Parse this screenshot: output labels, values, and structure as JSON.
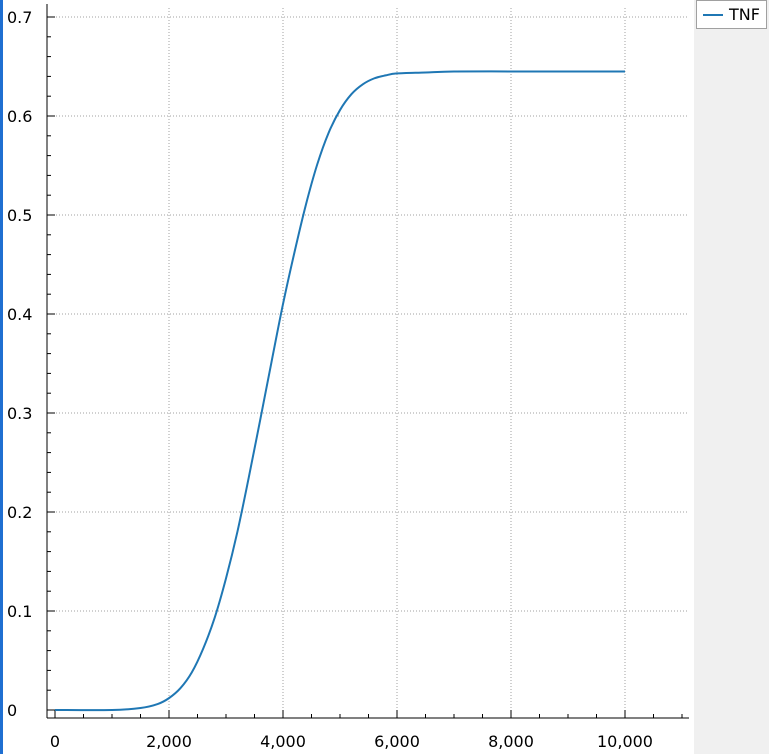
{
  "chart_data": {
    "type": "line",
    "title": "",
    "xlabel": "",
    "ylabel": "",
    "xlim": [
      0,
      11000
    ],
    "ylim": [
      0,
      0.7
    ],
    "x_ticks": [
      0,
      2000,
      4000,
      6000,
      8000,
      10000
    ],
    "x_tick_labels": [
      "0",
      "2,000",
      "4,000",
      "6,000",
      "8,000",
      "10,000"
    ],
    "y_ticks": [
      0,
      0.1,
      0.2,
      0.3,
      0.4,
      0.5,
      0.6,
      0.7
    ],
    "y_tick_labels": [
      "0",
      "0.1",
      "0.2",
      "0.3",
      "0.4",
      "0.5",
      "0.6",
      "0.7"
    ],
    "grid": true,
    "legend_position": "top-right",
    "series": [
      {
        "name": "TNF",
        "color": "#1f77b4",
        "x": [
          0,
          1000,
          1500,
          1800,
          2000,
          2200,
          2400,
          2600,
          2800,
          3000,
          3200,
          3400,
          3600,
          3800,
          4000,
          4200,
          4400,
          4600,
          4800,
          5000,
          5200,
          5400,
          5600,
          5800,
          6000,
          6500,
          7000,
          8000,
          9000,
          10000
        ],
        "y": [
          0,
          0,
          0.002,
          0.006,
          0.012,
          0.022,
          0.038,
          0.062,
          0.093,
          0.133,
          0.18,
          0.235,
          0.293,
          0.352,
          0.41,
          0.462,
          0.51,
          0.551,
          0.583,
          0.606,
          0.622,
          0.632,
          0.638,
          0.641,
          0.643,
          0.644,
          0.645,
          0.645,
          0.645,
          0.645
        ]
      }
    ]
  }
}
